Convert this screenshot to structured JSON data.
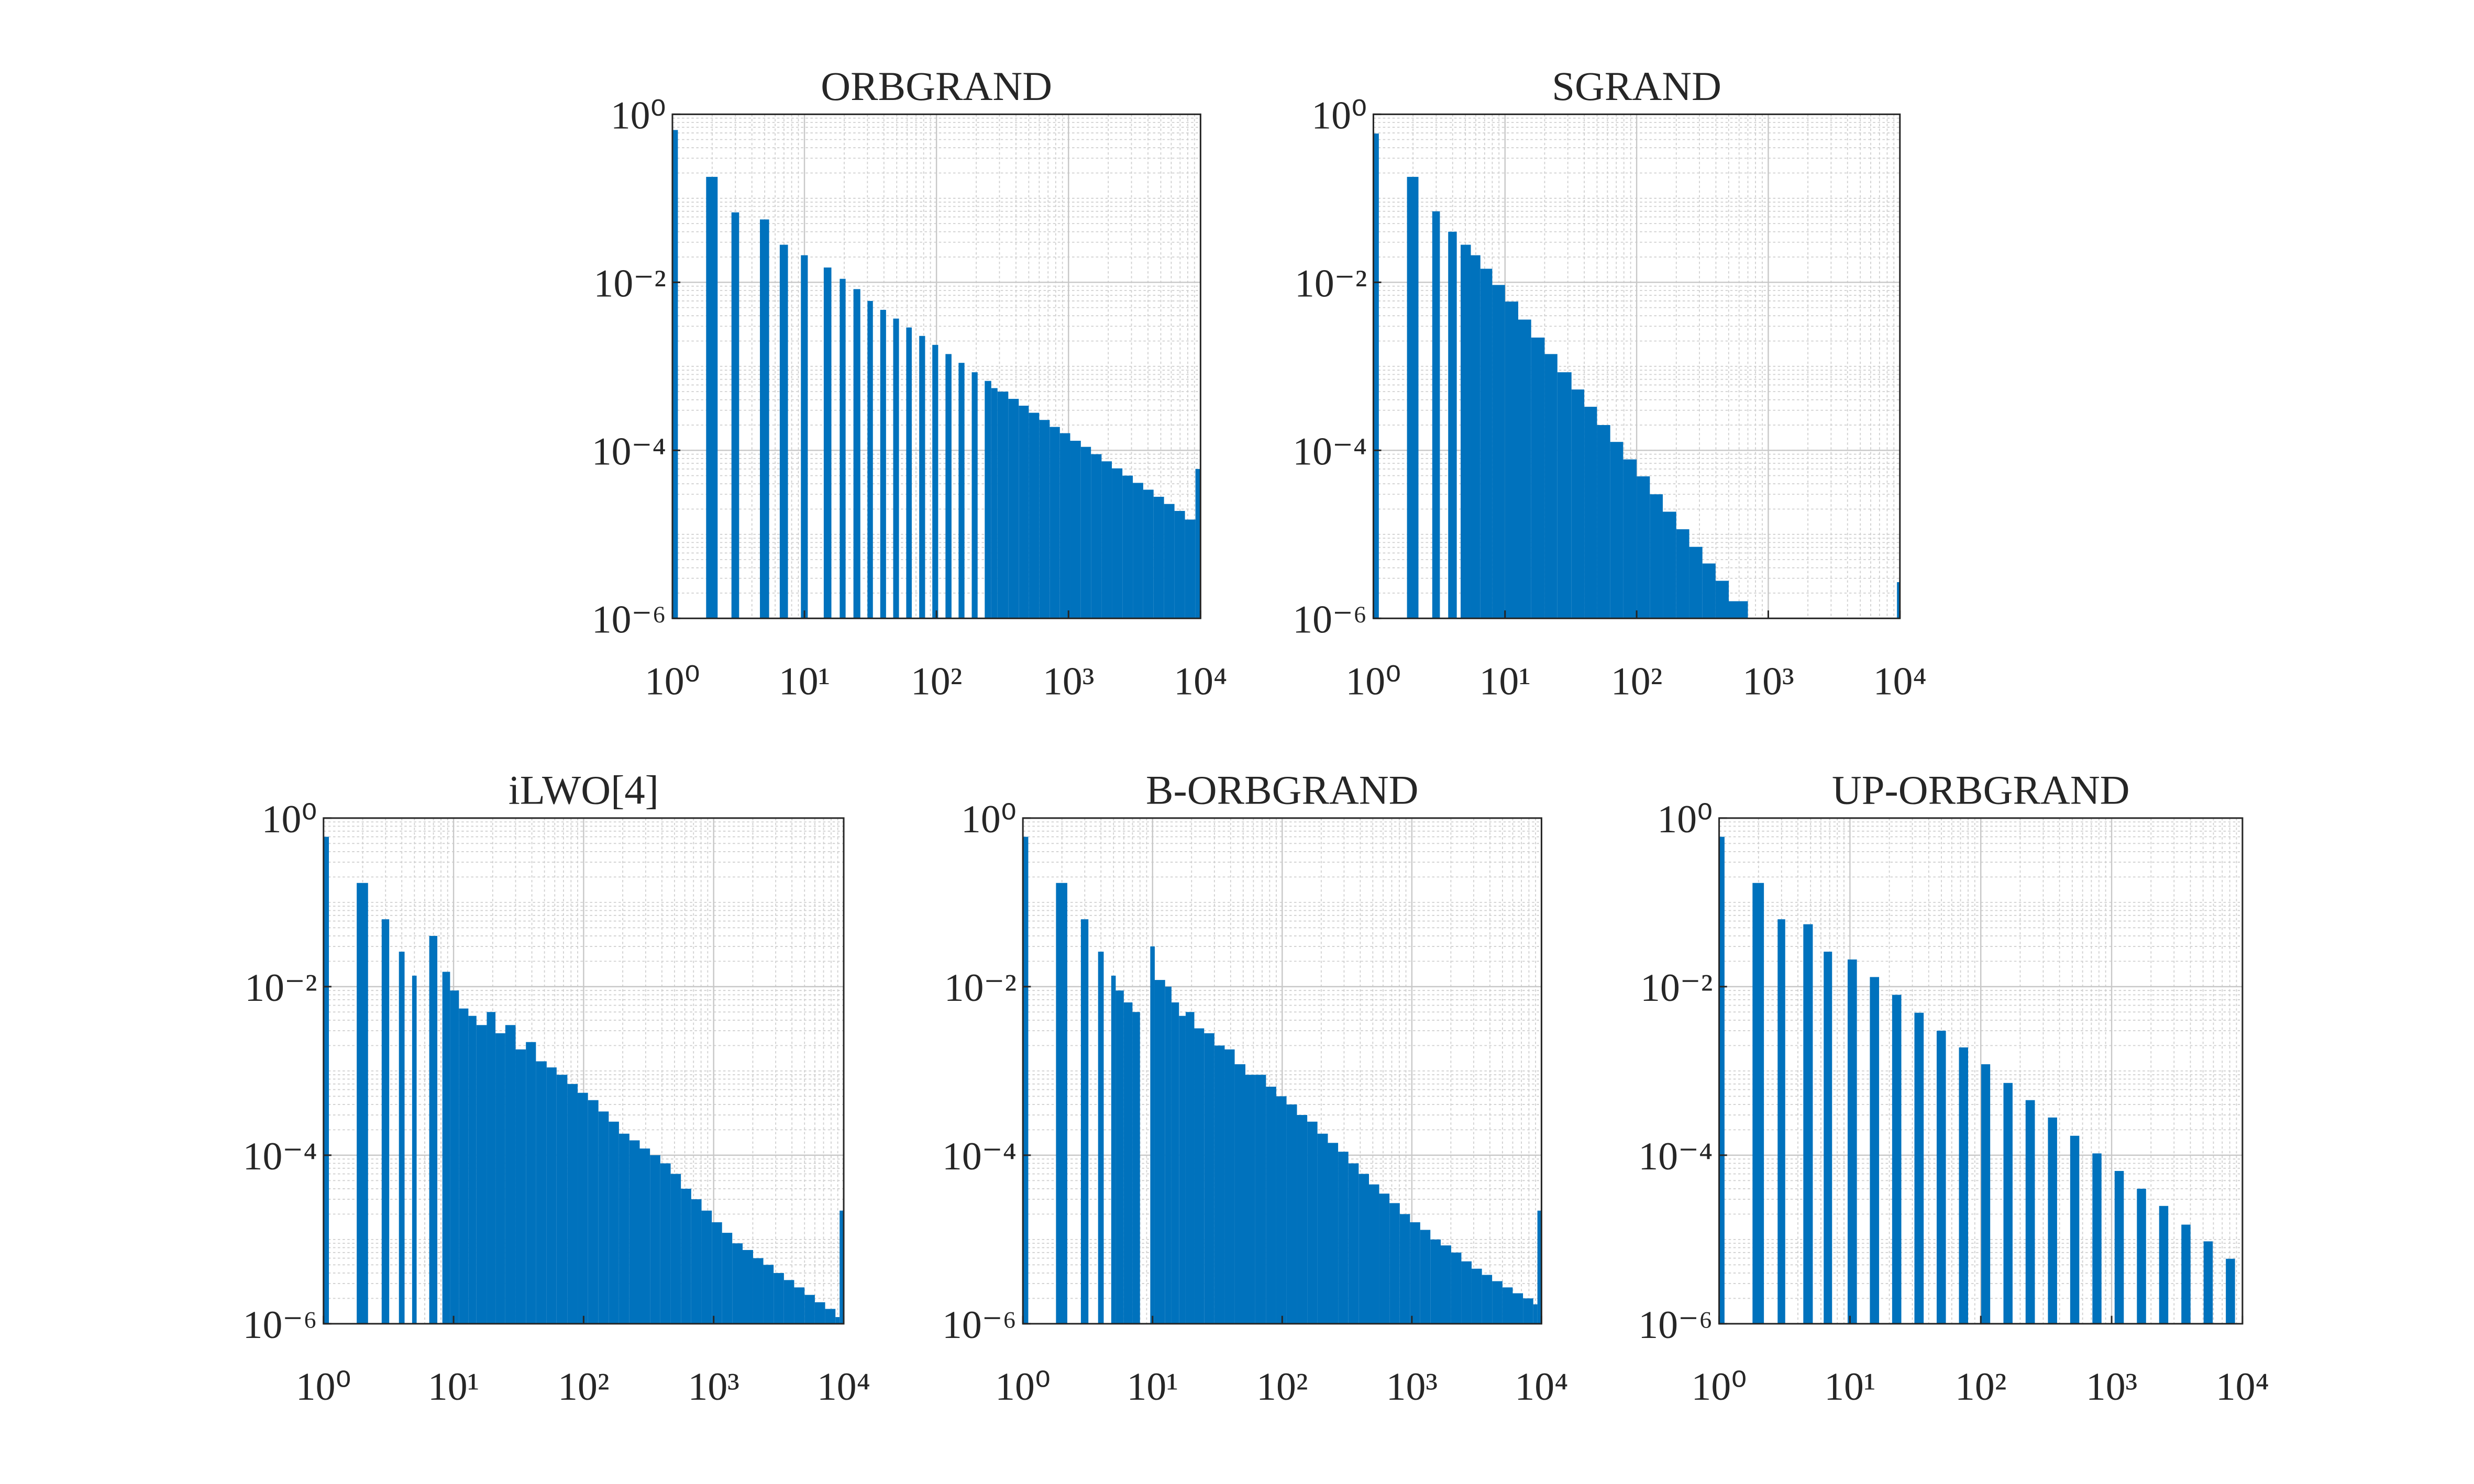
{
  "chart_data": [
    {
      "type": "histogram",
      "title": "ORBGRAND",
      "color": "#0072bd",
      "xscale": "log",
      "yscale": "log",
      "grid": true,
      "minor_grid": true,
      "xlim": [
        1,
        10000
      ],
      "ylim": [
        1e-06,
        1
      ],
      "xticks": [
        {
          "value": 1,
          "label": "10⁰"
        },
        {
          "value": 10,
          "label": "10¹"
        },
        {
          "value": 100,
          "label": "10²"
        },
        {
          "value": 1000,
          "label": "10³"
        },
        {
          "value": 10000,
          "label": "10⁴"
        }
      ],
      "yticks": [
        {
          "value": 1e-06,
          "label": "10⁻⁶"
        },
        {
          "value": 0.0001,
          "label": "10⁻⁴"
        },
        {
          "value": 0.01,
          "label": "10⁻²"
        },
        {
          "value": 1,
          "label": "10⁰"
        }
      ],
      "bins": [
        1,
        1.1,
        1.8,
        2.2,
        2.8,
        3.2,
        4.6,
        5.4,
        6.5,
        7.5,
        9.4,
        10.6,
        14,
        16,
        18.5,
        20.5,
        23.5,
        26.5,
        30,
        33,
        37.5,
        41.5,
        47,
        52,
        59,
        65,
        74,
        82,
        93,
        103,
        117,
        130,
        147,
        163,
        185,
        205,
        232,
        260,
        290,
        350,
        420,
        500,
        600,
        720,
        860,
        1030,
        1240,
        1480,
        1780,
        2130,
        2560,
        3070,
        3680,
        4410,
        5290,
        6350,
        7620,
        9150,
        10000
      ],
      "values": [
        0.65,
        0,
        0.18,
        0,
        0.068,
        0,
        0.056,
        0,
        0.028,
        0,
        0.021,
        0,
        0.015,
        0,
        0.011,
        0,
        0.0083,
        0,
        0.006,
        0,
        0.0047,
        0,
        0.0037,
        0,
        0.0029,
        0,
        0.0023,
        0,
        0.0018,
        0,
        0.0014,
        0,
        0.0011,
        0,
        0.00085,
        0,
        0.00067,
        0.00055,
        0.0005,
        0.00041,
        0.00034,
        0.00028,
        0.00023,
        0.00019,
        0.00016,
        0.00013,
        0.00011,
        9e-05,
        7.4e-05,
        6.1e-05,
        5e-05,
        4.1e-05,
        3.4e-05,
        2.8e-05,
        2.3e-05,
        1.9e-05,
        1.5e-05,
        6e-05
      ]
    },
    {
      "type": "histogram",
      "title": "SGRAND",
      "color": "#0072bd",
      "xscale": "log",
      "yscale": "log",
      "grid": true,
      "minor_grid": true,
      "xlim": [
        1,
        10000
      ],
      "ylim": [
        1e-06,
        1
      ],
      "xticks": [
        {
          "value": 1,
          "label": "10⁰"
        },
        {
          "value": 10,
          "label": "10¹"
        },
        {
          "value": 100,
          "label": "10²"
        },
        {
          "value": 1000,
          "label": "10³"
        },
        {
          "value": 10000,
          "label": "10⁴"
        }
      ],
      "yticks": [
        {
          "value": 1e-06,
          "label": "10⁻⁶"
        },
        {
          "value": 0.0001,
          "label": "10⁻⁴"
        },
        {
          "value": 0.01,
          "label": "10⁻²"
        },
        {
          "value": 1,
          "label": "10⁰"
        }
      ],
      "bins": [
        1,
        1.1,
        1.8,
        2.2,
        2.8,
        3.2,
        3.7,
        4.3,
        4.6,
        5.5,
        6.5,
        8,
        10,
        12.6,
        15.8,
        20,
        25,
        32,
        40,
        50,
        63,
        79,
        100,
        126,
        158,
        200,
        251,
        316,
        398,
        501,
        700,
        9500,
        10000
      ],
      "values": [
        0.59,
        0,
        0.18,
        0,
        0.07,
        0,
        0.04,
        0,
        0.028,
        0.021,
        0.0145,
        0.0093,
        0.0059,
        0.0036,
        0.0022,
        0.0014,
        0.00085,
        0.00053,
        0.00033,
        0.0002,
        0.000126,
        7.8e-05,
        4.9e-05,
        3e-05,
        1.86e-05,
        1.15e-05,
        7.1e-06,
        4.5e-06,
        2.8e-06,
        1.6e-06,
        0,
        2.7e-06
      ]
    },
    {
      "type": "histogram",
      "title": "iLWO[4]",
      "color": "#0072bd",
      "xscale": "log",
      "yscale": "log",
      "grid": true,
      "minor_grid": true,
      "xlim": [
        1,
        10000
      ],
      "ylim": [
        1e-06,
        1
      ],
      "xticks": [
        {
          "value": 1,
          "label": "10⁰"
        },
        {
          "value": 10,
          "label": "10¹"
        },
        {
          "value": 100,
          "label": "10²"
        },
        {
          "value": 1000,
          "label": "10³"
        },
        {
          "value": 10000,
          "label": "10⁴"
        }
      ],
      "yticks": [
        {
          "value": 1e-06,
          "label": "10⁻⁶"
        },
        {
          "value": 0.0001,
          "label": "10⁻⁴"
        },
        {
          "value": 0.01,
          "label": "10⁻²"
        },
        {
          "value": 1,
          "label": "10⁰"
        }
      ],
      "bins": [
        1,
        1.1,
        1.8,
        2.2,
        2.8,
        3.2,
        3.8,
        4.2,
        4.8,
        5.2,
        6.5,
        7.5,
        8.2,
        9.4,
        11,
        13,
        15,
        18,
        21,
        25,
        30,
        36,
        43,
        52,
        62,
        75,
        90,
        108,
        130,
        156,
        187,
        225,
        270,
        324,
        389,
        467,
        560,
        672,
        807,
        968,
        1160,
        1390,
        1670,
        2010,
        2410,
        2890,
        3470,
        4160,
        5000,
        6000,
        7200,
        8640,
        9300,
        10000
      ],
      "values": [
        0.6,
        0,
        0.17,
        0,
        0.063,
        0,
        0.026,
        0,
        0.0135,
        0,
        0.04,
        0,
        0.015,
        0.009,
        0.0055,
        0.0045,
        0.0035,
        0.005,
        0.0028,
        0.0035,
        0.0018,
        0.0022,
        0.0013,
        0.0011,
        0.0009,
        0.0007,
        0.00055,
        0.00045,
        0.00033,
        0.00025,
        0.00018,
        0.00015,
        0.00012,
        0.0001,
        8e-05,
        6e-05,
        4e-05,
        3e-05,
        2.2e-05,
        1.6e-05,
        1.2e-05,
        9e-06,
        7.5e-06,
        6e-06,
        5e-06,
        4e-06,
        3.3e-06,
        2.7e-06,
        2.2e-06,
        1.8e-06,
        1.5e-06,
        1.2e-06,
        2.2e-05
      ]
    },
    {
      "type": "histogram",
      "title": "B-ORBGRAND",
      "color": "#0072bd",
      "xscale": "log",
      "yscale": "log",
      "grid": true,
      "minor_grid": true,
      "xlim": [
        1,
        10000
      ],
      "ylim": [
        1e-06,
        1
      ],
      "xticks": [
        {
          "value": 1,
          "label": "10⁰"
        },
        {
          "value": 10,
          "label": "10¹"
        },
        {
          "value": 100,
          "label": "10²"
        },
        {
          "value": 1000,
          "label": "10³"
        },
        {
          "value": 10000,
          "label": "10⁴"
        }
      ],
      "yticks": [
        {
          "value": 1e-06,
          "label": "10⁻⁶"
        },
        {
          "value": 0.0001,
          "label": "10⁻⁴"
        },
        {
          "value": 0.01,
          "label": "10⁻²"
        },
        {
          "value": 1,
          "label": "10⁰"
        }
      ],
      "bins": [
        1,
        1.1,
        1.8,
        2.2,
        2.8,
        3.2,
        3.8,
        4.2,
        4.8,
        5.2,
        6,
        7,
        8,
        9.6,
        10.4,
        12.5,
        14,
        16,
        18,
        21,
        25,
        30,
        36,
        43,
        52,
        62,
        75,
        90,
        108,
        130,
        156,
        187,
        225,
        270,
        324,
        389,
        467,
        560,
        672,
        807,
        968,
        1160,
        1390,
        1670,
        2010,
        2410,
        2890,
        3470,
        4160,
        5000,
        6000,
        7200,
        8640,
        9300,
        10000
      ],
      "values": [
        0.6,
        0,
        0.17,
        0,
        0.063,
        0,
        0.026,
        0,
        0.0135,
        0.009,
        0.0065,
        0.005,
        0,
        0.03,
        0.012,
        0.01,
        0.0065,
        0.0045,
        0.005,
        0.0032,
        0.0028,
        0.002,
        0.0018,
        0.0012,
        0.0009,
        0.0009,
        0.00065,
        0.0005,
        0.0004,
        0.0003,
        0.00025,
        0.00018,
        0.00014,
        0.00011,
        8e-05,
        6e-05,
        4.5e-05,
        3.5e-05,
        2.7e-05,
        2e-05,
        1.6e-05,
        1.3e-05,
        1e-05,
        8.5e-06,
        7e-06,
        5.5e-06,
        4.5e-06,
        3.8e-06,
        3.2e-06,
        2.7e-06,
        2.3e-06,
        2e-06,
        1.7e-06,
        2.2e-05
      ]
    },
    {
      "type": "histogram",
      "title": "UP-ORBGRAND",
      "color": "#0072bd",
      "xscale": "log",
      "yscale": "log",
      "grid": true,
      "minor_grid": true,
      "xlim": [
        1,
        10000
      ],
      "ylim": [
        1e-06,
        1
      ],
      "xticks": [
        {
          "value": 1,
          "label": "10⁰"
        },
        {
          "value": 10,
          "label": "10¹"
        },
        {
          "value": 100,
          "label": "10²"
        },
        {
          "value": 1000,
          "label": "10³"
        },
        {
          "value": 10000,
          "label": "10⁴"
        }
      ],
      "yticks": [
        {
          "value": 1e-06,
          "label": "10⁻⁶"
        },
        {
          "value": 0.0001,
          "label": "10⁻⁴"
        },
        {
          "value": 0.01,
          "label": "10⁻²"
        },
        {
          "value": 1,
          "label": "10⁰"
        }
      ],
      "bins": [
        1,
        1.1,
        1.8,
        2.2,
        2.8,
        3.2,
        4.4,
        5.2,
        6.3,
        7.3,
        9.6,
        11.3,
        14.2,
        16.7,
        21,
        24.7,
        31.1,
        36.6,
        46,
        54.1,
        68.1,
        80,
        100.7,
        118,
        149,
        175,
        220,
        259,
        326,
        383,
        482,
        566,
        713,
        837,
        1054,
        1239,
        1560,
        1833,
        2307,
        2710,
        3412,
        4010,
        5047,
        5930,
        7464,
        8770,
        10000
      ],
      "values": [
        0.6,
        0,
        0.17,
        0,
        0.063,
        0,
        0.055,
        0,
        0.026,
        0,
        0.021,
        0,
        0.013,
        0,
        0.008,
        0,
        0.0049,
        0,
        0.003,
        0,
        0.0019,
        0,
        0.0012,
        0,
        0.00072,
        0,
        0.00045,
        0,
        0.00028,
        0,
        0.00017,
        0,
        0.000105,
        0,
        6.5e-05,
        0,
        4e-05,
        0,
        2.5e-05,
        0,
        1.5e-05,
        0,
        9.5e-06,
        0,
        5.9e-06,
        0
      ]
    }
  ]
}
